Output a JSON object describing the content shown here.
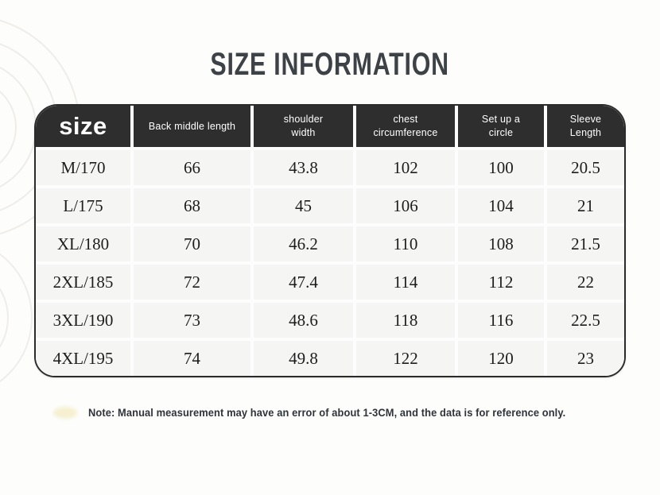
{
  "page": {
    "title": "SIZE INFORMATION",
    "note": "Note: Manual measurement may have an error of about 1-3CM, and the data is for reference only."
  },
  "chart_data": {
    "type": "table",
    "title": "SIZE INFORMATION",
    "columns": [
      "size",
      "Back middle length",
      "shoulder\nwidth",
      "chest\ncircumference",
      "Set up a\ncircle",
      "Sleeve\nLength"
    ],
    "rows": [
      [
        "M/170",
        "66",
        "43.8",
        "102",
        "100",
        "20.5"
      ],
      [
        "L/175",
        "68",
        "45",
        "106",
        "104",
        "21"
      ],
      [
        "XL/180",
        "70",
        "46.2",
        "110",
        "108",
        "21.5"
      ],
      [
        "2XL/185",
        "72",
        "47.4",
        "114",
        "112",
        "22"
      ],
      [
        "3XL/190",
        "73",
        "48.6",
        "118",
        "116",
        "22.5"
      ],
      [
        "4XL/195",
        "74",
        "49.8",
        "122",
        "120",
        "23"
      ]
    ],
    "note": "Note: Manual measurement may have an error of about 1-3CM, and the data is for reference only."
  },
  "colors": {
    "header_bg": "#2e2e2e",
    "table_border": "#2b2b2b",
    "cell_bg": "#f5f5f3",
    "title_text": "#3d4247",
    "body_text": "#1d1d1d",
    "note_text": "#30343a",
    "note_blob": "#f6f0d0",
    "watermark": "#edebe6"
  }
}
